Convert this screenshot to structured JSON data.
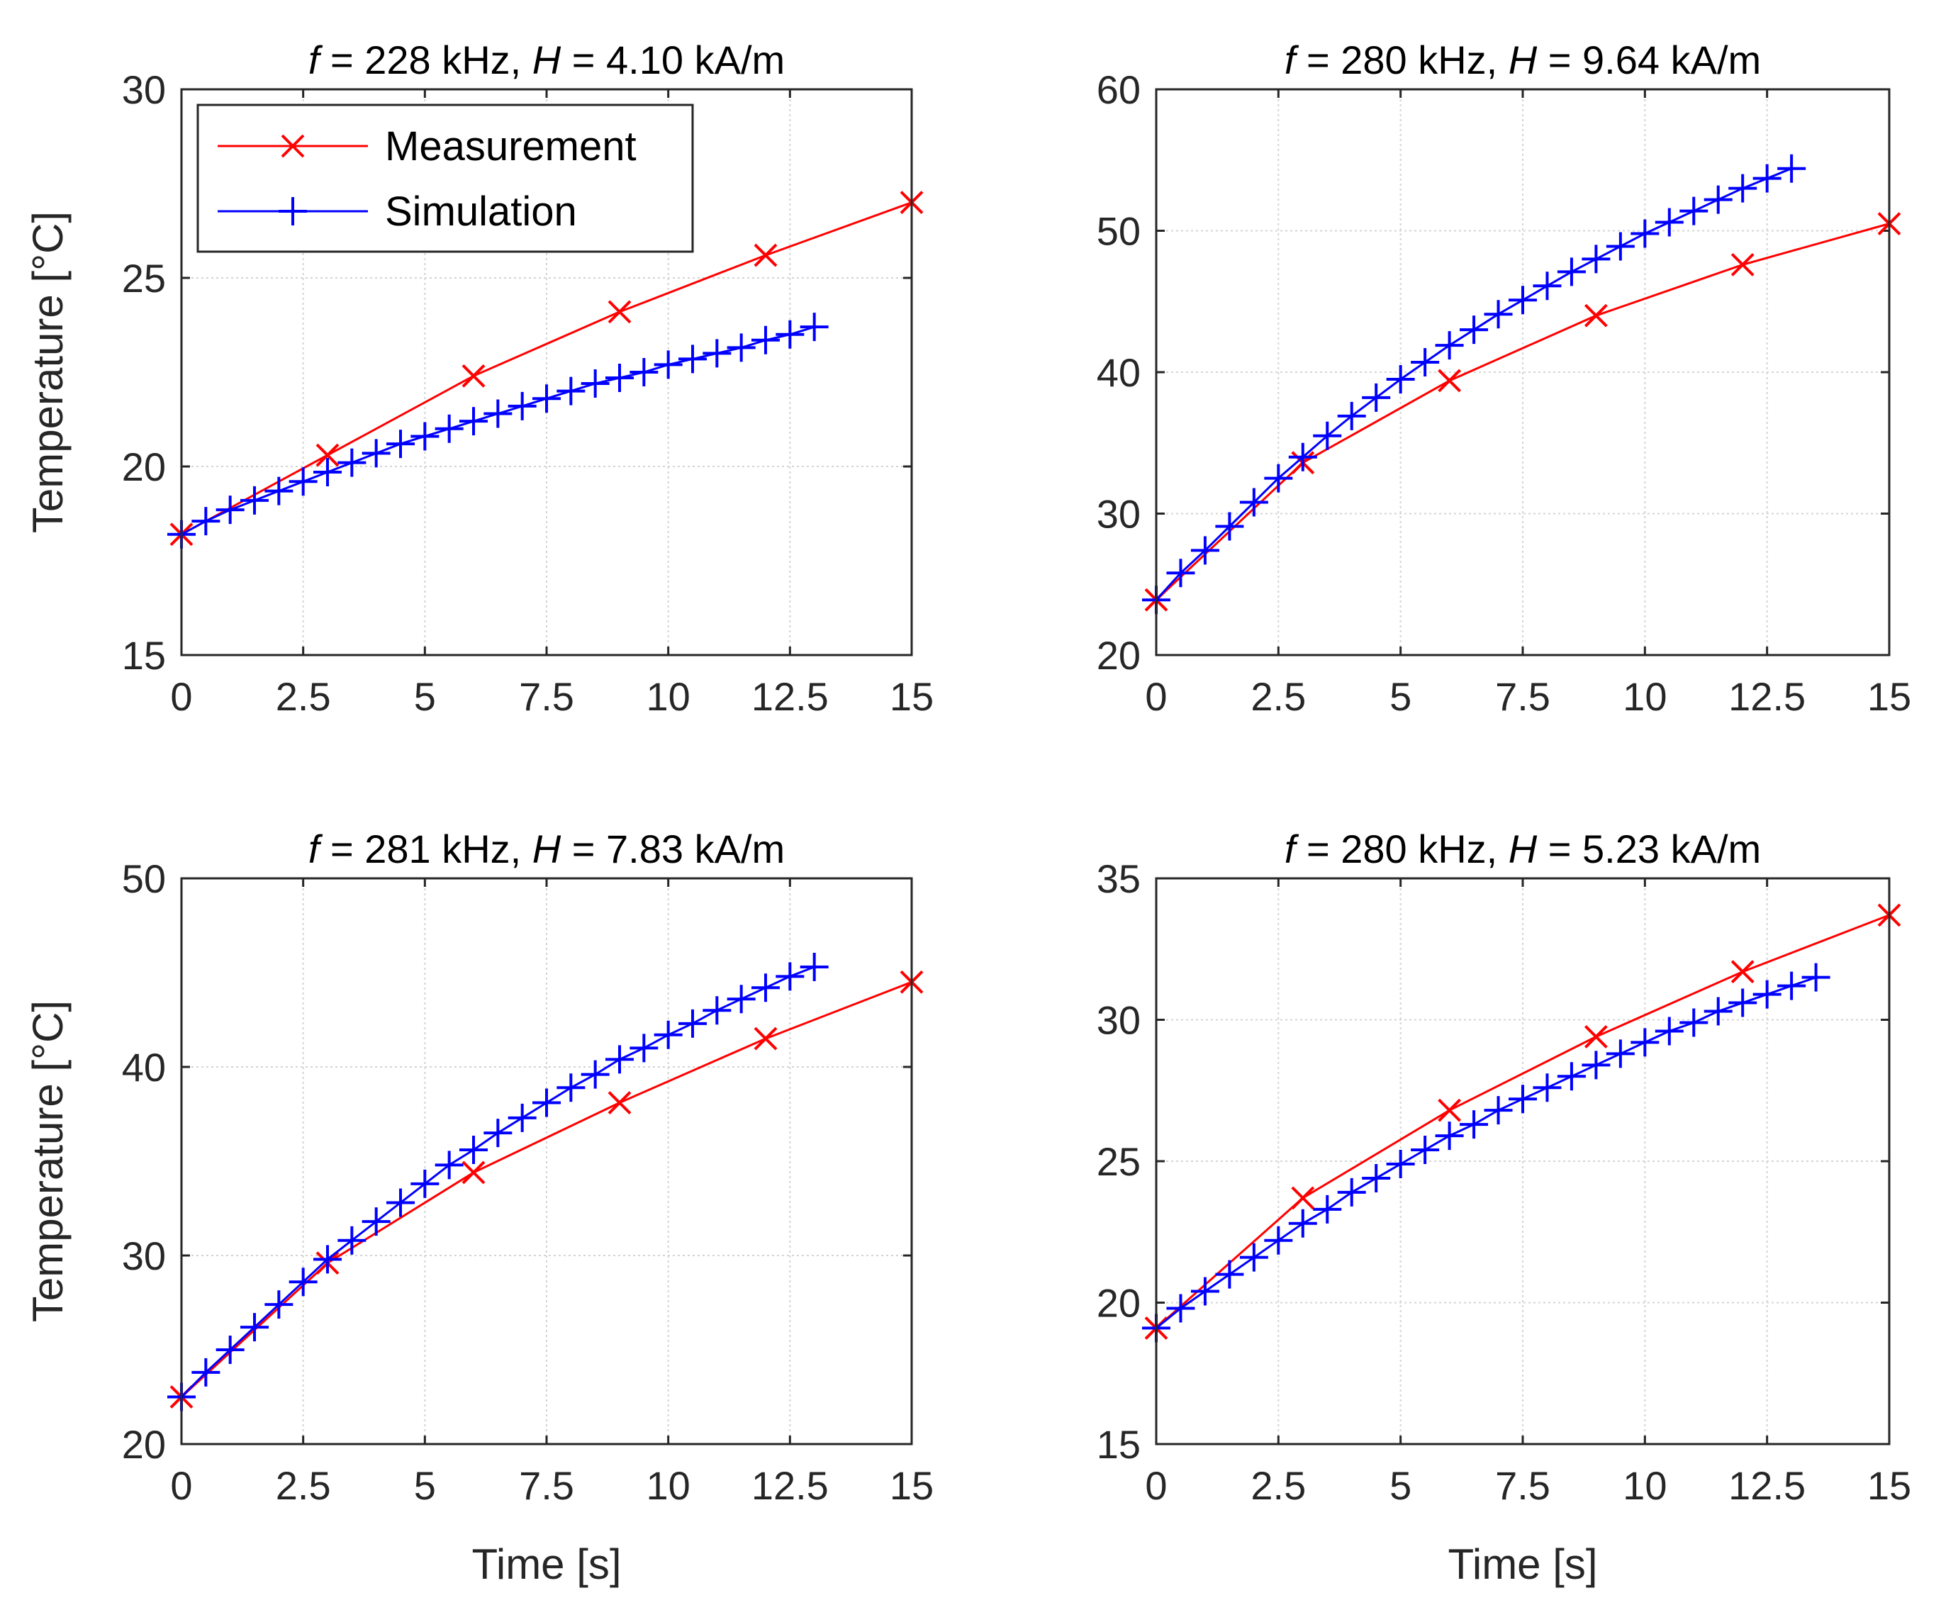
{
  "colors": {
    "measurement": "#ff0000",
    "simulation": "#0000ff"
  },
  "legend": {
    "measurement": "Measurement",
    "simulation": "Simulation"
  },
  "chart_data": [
    {
      "type": "line",
      "title_prefix": "f",
      "title_mid": " = 228 kHz, ",
      "title_var": "H",
      "title_suffix": " = 4.10 kA/m",
      "xlabel": "",
      "ylabel": "Temperature [°C]",
      "xlim": [
        0,
        15
      ],
      "ylim": [
        15,
        30
      ],
      "xticks": [
        0,
        2.5,
        5,
        7.5,
        10,
        12.5,
        15
      ],
      "xtick_labels": [
        "0",
        "2.5",
        "5",
        "7.5",
        "10",
        "12.5",
        "15"
      ],
      "yticks": [
        15,
        20,
        25,
        30
      ],
      "ytick_labels": [
        "15",
        "20",
        "25",
        "30"
      ],
      "grid": true,
      "legend_position": "top-left",
      "series": [
        {
          "name": "Measurement",
          "marker": "x",
          "x": [
            0,
            3,
            6,
            9,
            12,
            15
          ],
          "y": [
            18.2,
            20.3,
            22.4,
            24.1,
            25.6,
            27.0
          ]
        },
        {
          "name": "Simulation",
          "marker": "+",
          "x": [
            0,
            0.5,
            1,
            1.5,
            2,
            2.5,
            3,
            3.5,
            4,
            4.5,
            5,
            5.5,
            6,
            6.5,
            7,
            7.5,
            8,
            8.5,
            9,
            9.5,
            10,
            10.5,
            11,
            11.5,
            12,
            12.5,
            13
          ],
          "y": [
            18.2,
            18.55,
            18.85,
            19.1,
            19.35,
            19.6,
            19.85,
            20.1,
            20.35,
            20.6,
            20.8,
            21.0,
            21.2,
            21.4,
            21.6,
            21.8,
            22.0,
            22.2,
            22.35,
            22.5,
            22.7,
            22.85,
            23.0,
            23.15,
            23.35,
            23.5,
            23.7
          ]
        }
      ]
    },
    {
      "type": "line",
      "title_prefix": "f",
      "title_mid": " = 280 kHz, ",
      "title_var": "H",
      "title_suffix": " = 9.64 kA/m",
      "xlabel": "",
      "ylabel": "",
      "xlim": [
        0,
        15
      ],
      "ylim": [
        20,
        60
      ],
      "xticks": [
        0,
        2.5,
        5,
        7.5,
        10,
        12.5,
        15
      ],
      "xtick_labels": [
        "0",
        "2.5",
        "5",
        "7.5",
        "10",
        "12.5",
        "15"
      ],
      "yticks": [
        20,
        30,
        40,
        50,
        60
      ],
      "ytick_labels": [
        "20",
        "30",
        "40",
        "50",
        "60"
      ],
      "grid": true,
      "series": [
        {
          "name": "Measurement",
          "marker": "x",
          "x": [
            0,
            3,
            6,
            9,
            12,
            15
          ],
          "y": [
            23.9,
            33.6,
            39.4,
            44.0,
            47.6,
            50.5
          ]
        },
        {
          "name": "Simulation",
          "marker": "+",
          "x": [
            0,
            0.5,
            1,
            1.5,
            2,
            2.5,
            3,
            3.5,
            4,
            4.5,
            5,
            5.5,
            6,
            6.5,
            7,
            7.5,
            8,
            8.5,
            9,
            9.5,
            10,
            10.5,
            11,
            11.5,
            12,
            12.5,
            13
          ],
          "y": [
            23.9,
            25.8,
            27.4,
            29.1,
            30.8,
            32.5,
            34.0,
            35.5,
            36.9,
            38.2,
            39.5,
            40.7,
            41.9,
            43.0,
            44.1,
            45.1,
            46.1,
            47.1,
            48.0,
            48.9,
            49.8,
            50.6,
            51.4,
            52.2,
            53.0,
            53.7,
            54.4
          ]
        }
      ]
    },
    {
      "type": "line",
      "title_prefix": "f",
      "title_mid": " = 281 kHz, ",
      "title_var": "H",
      "title_suffix": " = 7.83 kA/m",
      "xlabel": "Time [s]",
      "ylabel": "Temperature [°C]",
      "xlim": [
        0,
        15
      ],
      "ylim": [
        20,
        50
      ],
      "xticks": [
        0,
        2.5,
        5,
        7.5,
        10,
        12.5,
        15
      ],
      "xtick_labels": [
        "0",
        "2.5",
        "5",
        "7.5",
        "10",
        "12.5",
        "15"
      ],
      "yticks": [
        20,
        30,
        40,
        50
      ],
      "ytick_labels": [
        "20",
        "30",
        "40",
        "50"
      ],
      "grid": true,
      "series": [
        {
          "name": "Measurement",
          "marker": "x",
          "x": [
            0,
            3,
            6,
            9,
            12,
            15
          ],
          "y": [
            22.5,
            29.6,
            34.4,
            38.1,
            41.5,
            44.5
          ]
        },
        {
          "name": "Simulation",
          "marker": "+",
          "x": [
            0,
            0.5,
            1,
            1.5,
            2,
            2.5,
            3,
            3.5,
            4,
            4.5,
            5,
            5.5,
            6,
            6.5,
            7,
            7.5,
            8,
            8.5,
            9,
            9.5,
            10,
            10.5,
            11,
            11.5,
            12,
            12.5,
            13
          ],
          "y": [
            22.5,
            23.8,
            25.0,
            26.2,
            27.4,
            28.6,
            29.8,
            30.8,
            31.8,
            32.8,
            33.8,
            34.8,
            35.6,
            36.5,
            37.3,
            38.1,
            38.9,
            39.6,
            40.4,
            41.0,
            41.7,
            42.3,
            43.0,
            43.6,
            44.2,
            44.8,
            45.3
          ]
        }
      ]
    },
    {
      "type": "line",
      "title_prefix": "f",
      "title_mid": " = 280 kHz, ",
      "title_var": "H",
      "title_suffix": " = 5.23 kA/m",
      "xlabel": "Time [s]",
      "ylabel": "",
      "xlim": [
        0,
        15
      ],
      "ylim": [
        15,
        35
      ],
      "xticks": [
        0,
        2.5,
        5,
        7.5,
        10,
        12.5,
        15
      ],
      "xtick_labels": [
        "0",
        "2.5",
        "5",
        "7.5",
        "10",
        "12.5",
        "15"
      ],
      "yticks": [
        15,
        20,
        25,
        30,
        35
      ],
      "ytick_labels": [
        "15",
        "20",
        "25",
        "30",
        "35"
      ],
      "grid": true,
      "series": [
        {
          "name": "Measurement",
          "marker": "x",
          "x": [
            0,
            3,
            6,
            9,
            12,
            15
          ],
          "y": [
            19.1,
            23.7,
            26.8,
            29.4,
            31.7,
            33.7
          ]
        },
        {
          "name": "Simulation",
          "marker": "+",
          "x": [
            0,
            0.5,
            1,
            1.5,
            2,
            2.5,
            3,
            3.5,
            4,
            4.5,
            5,
            5.5,
            6,
            6.5,
            7,
            7.5,
            8,
            8.5,
            9,
            9.5,
            10,
            10.5,
            11,
            11.5,
            12,
            12.5,
            13,
            13.5
          ],
          "y": [
            19.1,
            19.8,
            20.4,
            21.0,
            21.6,
            22.2,
            22.8,
            23.3,
            23.9,
            24.4,
            24.9,
            25.4,
            25.9,
            26.3,
            26.8,
            27.2,
            27.6,
            28.0,
            28.4,
            28.8,
            29.2,
            29.6,
            29.9,
            30.3,
            30.6,
            30.9,
            31.2,
            31.5
          ]
        }
      ]
    }
  ]
}
